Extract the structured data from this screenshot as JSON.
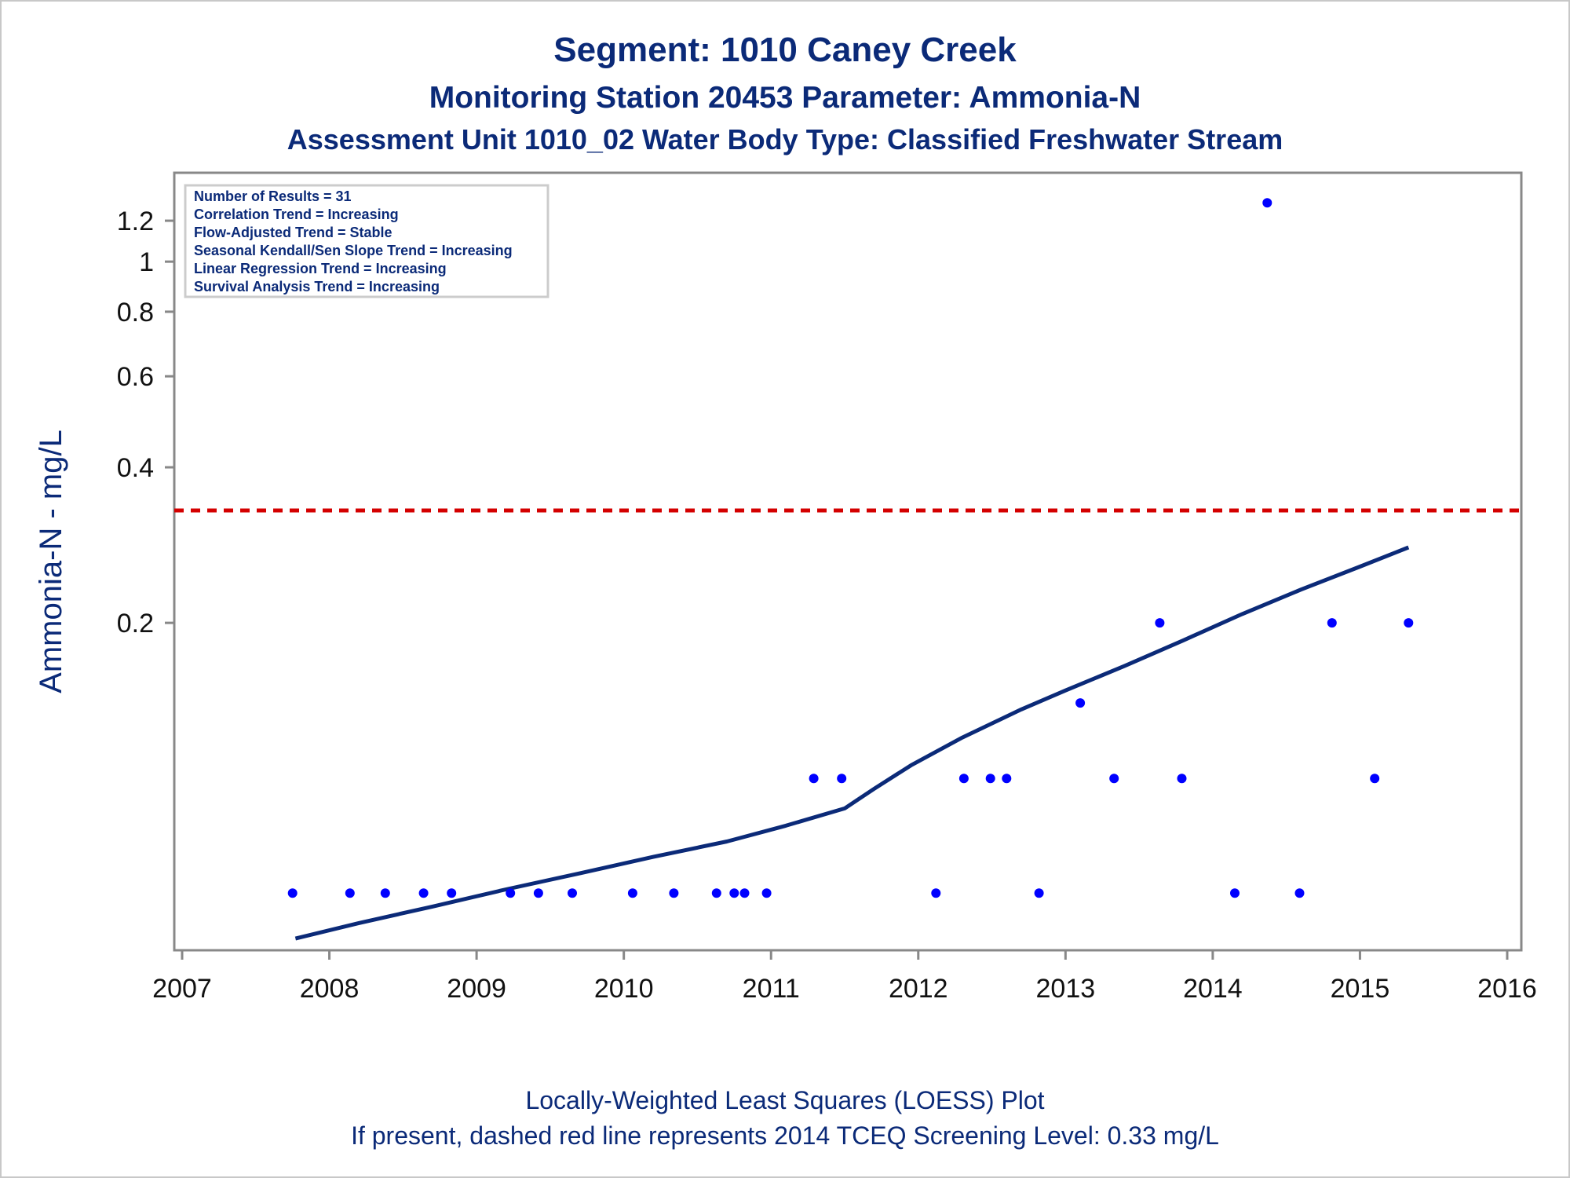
{
  "chart_data": {
    "type": "scatter",
    "title": "Segment: 1010  Caney Creek",
    "subtitle1": "Monitoring Station 20453 Parameter: Ammonia-N",
    "subtitle2": "Assessment Unit 1010_02   Water Body Type: Classified Freshwater Stream",
    "ylabel": "Ammonia-N - mg/L",
    "xlabel": "",
    "yscale": "log",
    "ylim": [
      0.047,
      1.4
    ],
    "xlim": [
      2007,
      2016
    ],
    "x_ticks": [
      "2007",
      "2008",
      "2009",
      "2010",
      "2011",
      "2012",
      "2013",
      "2014",
      "2015",
      "2016"
    ],
    "y_ticks": [
      {
        "value": 0.2,
        "label": "0.2"
      },
      {
        "value": 0.4,
        "label": "0.4"
      },
      {
        "value": 0.6,
        "label": "0.6"
      },
      {
        "value": 0.8,
        "label": "0.8"
      },
      {
        "value": 1.0,
        "label": "1"
      },
      {
        "value": 1.2,
        "label": "1.2"
      }
    ],
    "stats_box": [
      "Number of Results = 31",
      "Correlation Trend = Increasing",
      "Flow-Adjusted Trend = Stable",
      "Seasonal Kendall/Sen Slope Trend = Increasing",
      "Linear Regression Trend = Increasing",
      "Survival Analysis Trend = Increasing"
    ],
    "points": [
      {
        "x": 2007.75,
        "y": 0.06
      },
      {
        "x": 2008.14,
        "y": 0.06
      },
      {
        "x": 2008.38,
        "y": 0.06
      },
      {
        "x": 2008.64,
        "y": 0.06
      },
      {
        "x": 2008.83,
        "y": 0.06
      },
      {
        "x": 2009.23,
        "y": 0.06
      },
      {
        "x": 2009.42,
        "y": 0.06
      },
      {
        "x": 2009.65,
        "y": 0.06
      },
      {
        "x": 2010.06,
        "y": 0.06
      },
      {
        "x": 2010.34,
        "y": 0.06
      },
      {
        "x": 2010.63,
        "y": 0.06
      },
      {
        "x": 2010.75,
        "y": 0.06
      },
      {
        "x": 2010.82,
        "y": 0.06
      },
      {
        "x": 2010.97,
        "y": 0.06
      },
      {
        "x": 2011.29,
        "y": 0.1
      },
      {
        "x": 2011.48,
        "y": 0.1
      },
      {
        "x": 2012.12,
        "y": 0.06
      },
      {
        "x": 2012.31,
        "y": 0.1
      },
      {
        "x": 2012.49,
        "y": 0.1
      },
      {
        "x": 2012.6,
        "y": 0.1
      },
      {
        "x": 2012.82,
        "y": 0.06
      },
      {
        "x": 2013.1,
        "y": 0.14
      },
      {
        "x": 2013.33,
        "y": 0.1
      },
      {
        "x": 2013.64,
        "y": 0.2
      },
      {
        "x": 2013.79,
        "y": 0.1
      },
      {
        "x": 2014.15,
        "y": 0.06
      },
      {
        "x": 2014.37,
        "y": 1.3
      },
      {
        "x": 2014.59,
        "y": 0.06
      },
      {
        "x": 2014.81,
        "y": 0.2
      },
      {
        "x": 2015.1,
        "y": 0.1
      },
      {
        "x": 2015.33,
        "y": 0.2
      }
    ],
    "loess": [
      {
        "x": 2007.77,
        "y": 0.049
      },
      {
        "x": 2008.2,
        "y": 0.0525
      },
      {
        "x": 2008.7,
        "y": 0.0565
      },
      {
        "x": 2009.2,
        "y": 0.061
      },
      {
        "x": 2009.7,
        "y": 0.0655
      },
      {
        "x": 2010.2,
        "y": 0.0705
      },
      {
        "x": 2010.7,
        "y": 0.0755
      },
      {
        "x": 2011.1,
        "y": 0.081
      },
      {
        "x": 2011.5,
        "y": 0.0875
      },
      {
        "x": 2011.7,
        "y": 0.0955
      },
      {
        "x": 2011.95,
        "y": 0.106
      },
      {
        "x": 2012.3,
        "y": 0.12
      },
      {
        "x": 2012.7,
        "y": 0.136
      },
      {
        "x": 2013.0,
        "y": 0.148
      },
      {
        "x": 2013.4,
        "y": 0.165
      },
      {
        "x": 2013.8,
        "y": 0.185
      },
      {
        "x": 2014.2,
        "y": 0.208
      },
      {
        "x": 2014.6,
        "y": 0.232
      },
      {
        "x": 2015.0,
        "y": 0.257
      },
      {
        "x": 2015.33,
        "y": 0.28
      }
    ],
    "screening_level": {
      "value": 0.33,
      "color": "#d40000"
    },
    "colors": {
      "points": "#0000ff",
      "loess": "#0b2a78",
      "axis": "#888888",
      "text": "#0b2a78"
    },
    "footnote1": "Locally-Weighted Least Squares (LOESS) Plot",
    "footnote2": "If present, dashed red line represents 2014 TCEQ Screening Level: 0.33 mg/L"
  }
}
